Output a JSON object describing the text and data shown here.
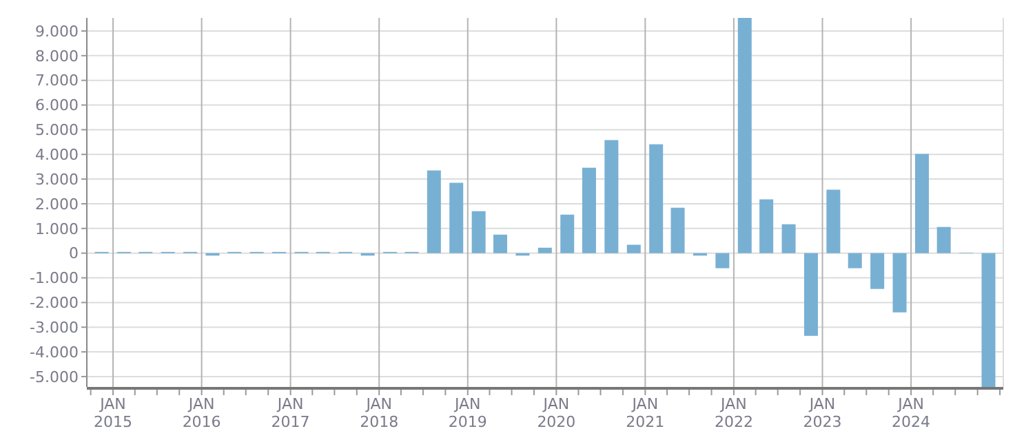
{
  "chart_data": {
    "type": "bar",
    "color": "#78b0d3",
    "grid": true,
    "x": [
      "2014-11-15",
      "2015-02-15",
      "2015-05-15",
      "2015-08-15",
      "2015-11-15",
      "2016-02-15",
      "2016-05-15",
      "2016-08-15",
      "2016-11-15",
      "2017-02-15",
      "2017-05-15",
      "2017-08-15",
      "2017-11-15",
      "2018-02-15",
      "2018-05-15",
      "2018-08-15",
      "2018-11-15",
      "2019-02-15",
      "2019-05-15",
      "2019-08-15",
      "2019-11-15",
      "2020-02-15",
      "2020-05-15",
      "2020-08-15",
      "2020-11-15",
      "2021-02-15",
      "2021-05-15",
      "2021-08-15",
      "2021-11-15",
      "2022-02-15",
      "2022-05-15",
      "2022-08-15",
      "2022-11-15",
      "2023-02-15",
      "2023-05-15",
      "2023-08-15",
      "2023-11-15",
      "2024-02-15",
      "2024-05-15",
      "2024-08-15",
      "2024-11-15"
    ],
    "values": [
      50,
      50,
      50,
      50,
      50,
      -100,
      50,
      50,
      50,
      50,
      50,
      50,
      -100,
      50,
      50,
      3350,
      2850,
      1700,
      750,
      -100,
      220,
      1560,
      3460,
      4580,
      340,
      4410,
      1840,
      -100,
      -610,
      9530,
      2180,
      1170,
      -3350,
      2570,
      -610,
      -1450,
      -2400,
      4020,
      1060,
      20,
      -5420
    ],
    "xlim": [
      "2014-09-15",
      "2025-01-15"
    ],
    "xticks": [
      {
        "value": "2015-01-01",
        "label": "JAN 2015"
      },
      {
        "value": "2016-01-01",
        "label": "JAN 2016"
      },
      {
        "value": "2017-01-01",
        "label": "JAN 2017"
      },
      {
        "value": "2018-01-01",
        "label": "JAN 2018"
      },
      {
        "value": "2019-01-01",
        "label": "JAN 2019"
      },
      {
        "value": "2020-01-01",
        "label": "JAN 2020"
      },
      {
        "value": "2021-01-01",
        "label": "JAN 2021"
      },
      {
        "value": "2022-01-01",
        "label": "JAN 2022"
      },
      {
        "value": "2023-01-01",
        "label": "JAN 2023"
      },
      {
        "value": "2024-01-01",
        "label": "JAN 2024"
      }
    ],
    "ylim": [
      -5420,
      9530
    ],
    "yticks": [
      {
        "value": -5000,
        "label": "-5.000"
      },
      {
        "value": -4000,
        "label": "-4.000"
      },
      {
        "value": -3000,
        "label": "-3.000"
      },
      {
        "value": -2000,
        "label": "-2.000"
      },
      {
        "value": -1000,
        "label": "-1.000"
      },
      0,
      {
        "value": 1000,
        "label": "1.000"
      },
      {
        "value": 2000,
        "label": "2.000"
      },
      {
        "value": 3000,
        "label": "3.000"
      },
      {
        "value": 4000,
        "label": "4.000"
      },
      {
        "value": 5000,
        "label": "5.000"
      },
      {
        "value": 6000,
        "label": "6.000"
      },
      {
        "value": 7000,
        "label": "7.000"
      },
      {
        "value": 8000,
        "label": "8.000"
      },
      {
        "value": 9000,
        "label": "9.000"
      }
    ]
  }
}
